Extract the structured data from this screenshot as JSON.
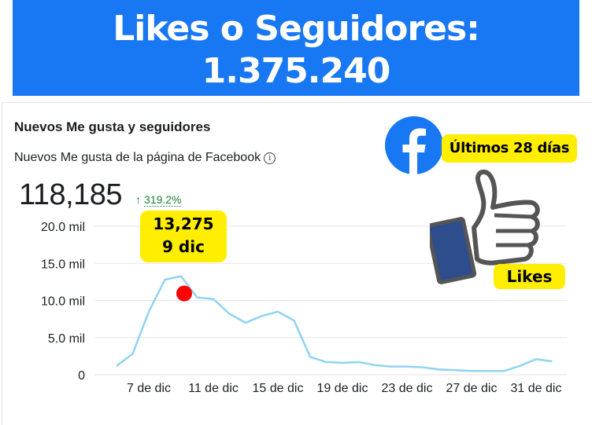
{
  "banner": {
    "line1": "Likes o Seguidores:",
    "line2": "1.375.240"
  },
  "card": {
    "title": "Nuevos Me gusta y seguidores",
    "subtitle": "Nuevos Me gusta de la página de Facebook",
    "info_icon": "info-icon",
    "total": "118,185",
    "change": "319.2%",
    "change_direction": "up"
  },
  "callout": {
    "value": "13,275",
    "date": "9 dic"
  },
  "overlay": {
    "days_badge": "Últimos 28 días",
    "likes_badge": "Likes",
    "logo": "facebook-logo-icon",
    "thumb": "thumbs-up-icon"
  },
  "colors": {
    "banner": "#1877f2",
    "line": "#8fd3f4",
    "highlight": "#ff0000",
    "badge": "#ffee00",
    "positive": "#1a7f37"
  },
  "chart_data": {
    "type": "line",
    "title": "",
    "xlabel": "",
    "ylabel": "",
    "y_tick_labels": [
      "0",
      "5.0 mil",
      "10.0 mil",
      "15.0 mil",
      "20.0 mil"
    ],
    "y_ticks": [
      0,
      5000,
      10000,
      15000,
      20000
    ],
    "ylim": [
      0,
      20000
    ],
    "x_tick_labels": [
      "7 de dic",
      "11 de dic",
      "15 de dic",
      "19 de dic",
      "23 de dic",
      "27 de dic",
      "31 de dic"
    ],
    "grid": true,
    "x": [
      "5 dic",
      "6 dic",
      "7 dic",
      "8 dic",
      "9 dic",
      "10 dic",
      "11 dic",
      "12 dic",
      "13 dic",
      "14 dic",
      "15 dic",
      "16 dic",
      "17 dic",
      "18 dic",
      "19 dic",
      "20 dic",
      "21 dic",
      "22 dic",
      "23 dic",
      "24 dic",
      "25 dic",
      "26 dic",
      "27 dic",
      "28 dic",
      "29 dic",
      "30 dic",
      "31 dic",
      "1 ene"
    ],
    "values": [
      1200,
      2800,
      8500,
      12800,
      13275,
      10400,
      10200,
      8200,
      7000,
      7900,
      8500,
      7300,
      2400,
      1700,
      1600,
      1700,
      1300,
      1100,
      1100,
      1000,
      700,
      600,
      500,
      500,
      500,
      1200,
      2100,
      1800
    ],
    "highlight": {
      "index": 4,
      "value": 13275
    }
  }
}
